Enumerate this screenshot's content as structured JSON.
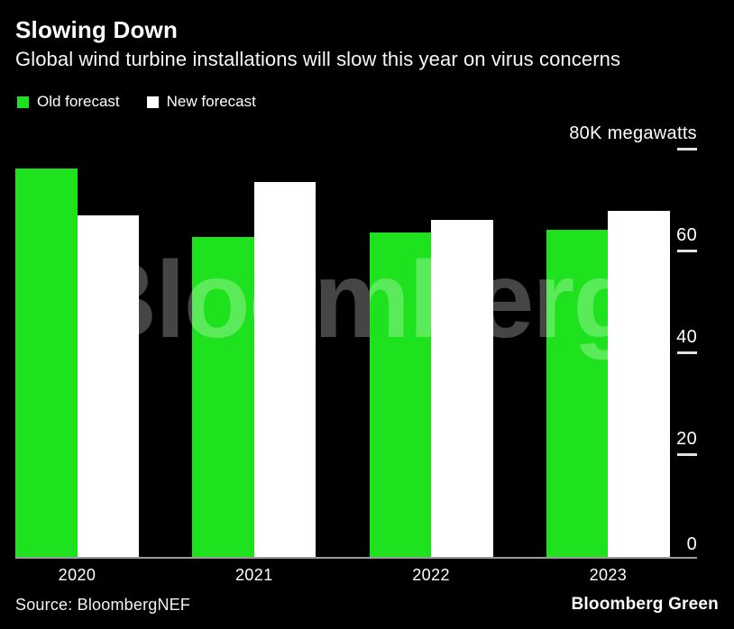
{
  "header": {
    "title": "Slowing Down",
    "subtitle": "Global wind turbine installations will slow this year on virus concerns"
  },
  "legend": {
    "items": [
      {
        "label": "Old forecast",
        "color": "#1de21d"
      },
      {
        "label": "New forecast",
        "color": "#ffffff"
      }
    ]
  },
  "chart_data": {
    "type": "bar",
    "categories": [
      "2020",
      "2021",
      "2022",
      "2023"
    ],
    "series": [
      {
        "name": "Old forecast",
        "color": "#1de21d",
        "values": [
          76.2,
          62.8,
          63.7,
          64.2
        ]
      },
      {
        "name": "New forecast",
        "color": "#ffffff",
        "values": [
          67.0,
          73.6,
          66.2,
          68.0
        ]
      }
    ],
    "title": "Slowing Down",
    "subtitle": "Global wind turbine installations will slow this year on virus concerns",
    "xlabel": "",
    "ylabel": "80K megawatts",
    "ylim": [
      0,
      80
    ],
    "grid": false,
    "legend_position": "top-left",
    "yticks": [
      {
        "value": 80,
        "label": "80K megawatts"
      },
      {
        "value": 60,
        "label": "60"
      },
      {
        "value": 40,
        "label": "40"
      },
      {
        "value": 20,
        "label": "20"
      },
      {
        "value": 0,
        "label": "0"
      }
    ]
  },
  "watermark": "Bloomberg",
  "footer": {
    "source": "Source: BloombergNEF",
    "brand": "Bloomberg Green"
  },
  "colors": {
    "background": "#000000",
    "old_forecast": "#1de21d",
    "new_forecast": "#ffffff",
    "axis_line": "#9b9b9b",
    "tick_dash": "#e2e2e2",
    "text": "#ffffff",
    "watermark": "rgba(255,255,255,0.27)"
  }
}
